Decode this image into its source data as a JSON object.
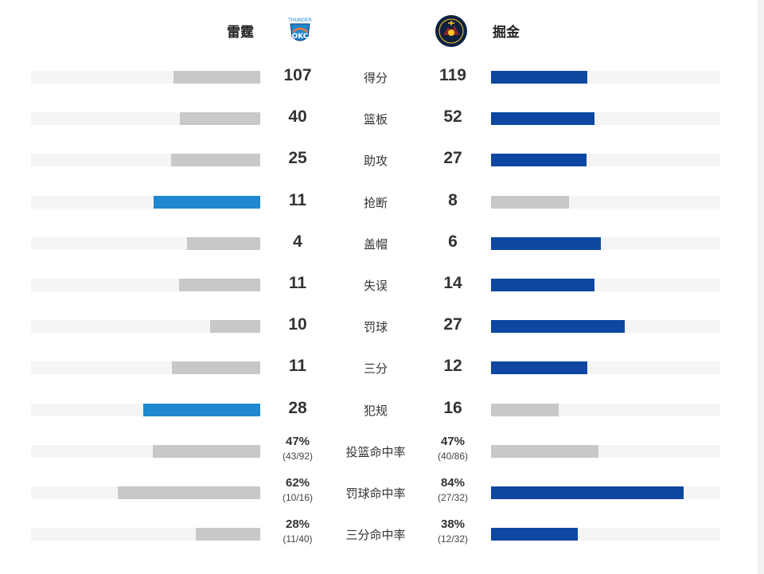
{
  "teams": {
    "home": {
      "name": "雷霆",
      "logo_icon": "thunder-logo-icon",
      "logo_text": "THUNDER"
    },
    "away": {
      "name": "掘金",
      "logo_icon": "nuggets-logo-icon",
      "logo_text": "DENVER NUGGETS"
    }
  },
  "colors": {
    "track": "#f5f5f5",
    "grey_fill": "#c8c8c8",
    "thunder_blue": "#1e88d0",
    "nuggets_navy": "#0d47a1"
  },
  "stats": [
    {
      "label": "得分",
      "home": "107",
      "away": "119",
      "home_bar": 0.38,
      "away_bar": 0.42,
      "home_color": "#c8c8c8",
      "away_color": "#0d47a1"
    },
    {
      "label": "篮板",
      "home": "40",
      "away": "52",
      "home_bar": 0.35,
      "away_bar": 0.45,
      "home_color": "#c8c8c8",
      "away_color": "#0d47a1"
    },
    {
      "label": "助攻",
      "home": "25",
      "away": "27",
      "home_bar": 0.39,
      "away_bar": 0.415,
      "home_color": "#c8c8c8",
      "away_color": "#0d47a1"
    },
    {
      "label": "抢断",
      "home": "11",
      "away": "8",
      "home_bar": 0.465,
      "away_bar": 0.34,
      "home_color": "#1e88d0",
      "away_color": "#c8c8c8"
    },
    {
      "label": "盖帽",
      "home": "4",
      "away": "6",
      "home_bar": 0.32,
      "away_bar": 0.48,
      "home_color": "#c8c8c8",
      "away_color": "#0d47a1"
    },
    {
      "label": "失误",
      "home": "11",
      "away": "14",
      "home_bar": 0.355,
      "away_bar": 0.45,
      "home_color": "#c8c8c8",
      "away_color": "#0d47a1"
    },
    {
      "label": "罚球",
      "home": "10",
      "away": "27",
      "home_bar": 0.22,
      "away_bar": 0.585,
      "home_color": "#c8c8c8",
      "away_color": "#0d47a1"
    },
    {
      "label": "三分",
      "home": "11",
      "away": "12",
      "home_bar": 0.385,
      "away_bar": 0.42,
      "home_color": "#c8c8c8",
      "away_color": "#0d47a1"
    },
    {
      "label": "犯规",
      "home": "28",
      "away": "16",
      "home_bar": 0.51,
      "away_bar": 0.295,
      "home_color": "#1e88d0",
      "away_color": "#c8c8c8"
    }
  ],
  "percentages": [
    {
      "label": "投篮命中率",
      "home_pct": "47%",
      "home_detail": "(43/92)",
      "away_pct": "47%",
      "away_detail": "(40/86)",
      "home_bar": 0.47,
      "away_bar": 0.47,
      "home_color": "#c8c8c8",
      "away_color": "#c8c8c8"
    },
    {
      "label": "罚球命中率",
      "home_pct": "62%",
      "home_detail": "(10/16)",
      "away_pct": "84%",
      "away_detail": "(27/32)",
      "home_bar": 0.62,
      "away_bar": 0.84,
      "home_color": "#c8c8c8",
      "away_color": "#0d47a1"
    },
    {
      "label": "三分命中率",
      "home_pct": "28%",
      "home_detail": "(11/40)",
      "away_pct": "38%",
      "away_detail": "(12/32)",
      "home_bar": 0.28,
      "away_bar": 0.38,
      "home_color": "#c8c8c8",
      "away_color": "#0d47a1"
    }
  ]
}
